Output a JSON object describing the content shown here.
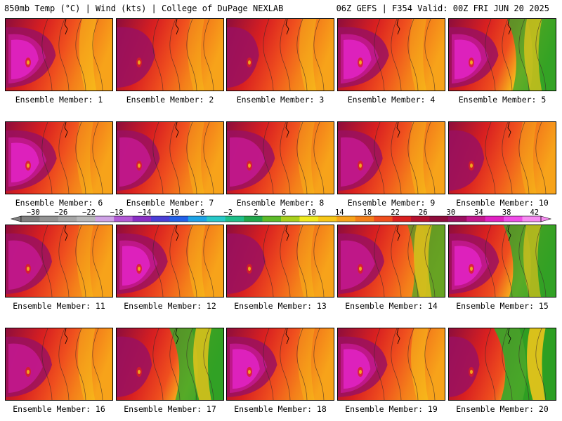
{
  "header": {
    "left": "850mb Temp (°C) | Wind (kts) | College of DuPage NEXLAB",
    "right": "06Z GEFS | F354 Valid: 00Z FRI JUN 20 2025"
  },
  "members": [
    {
      "label": "Ensemble Member: 1",
      "hot": 0.92,
      "cool": 0.18,
      "green": 0
    },
    {
      "label": "Ensemble Member: 2",
      "hot": 0.55,
      "cool": 0.0,
      "green": 0
    },
    {
      "label": "Ensemble Member: 3",
      "hot": 0.35,
      "cool": 0.1,
      "green": 0
    },
    {
      "label": "Ensemble Member: 4",
      "hot": 0.95,
      "cool": 0.05,
      "green": 0
    },
    {
      "label": "Ensemble Member: 5",
      "hot": 0.9,
      "cool": 0.3,
      "green": 0.6
    },
    {
      "label": "Ensemble Member: 6",
      "hot": 0.95,
      "cool": 0.0,
      "green": 0
    },
    {
      "label": "Ensemble Member: 7",
      "hot": 0.7,
      "cool": 0.0,
      "green": 0
    },
    {
      "label": "Ensemble Member: 8",
      "hot": 0.85,
      "cool": 0.0,
      "green": 0
    },
    {
      "label": "Ensemble Member: 9",
      "hot": 0.75,
      "cool": 0.05,
      "green": 0
    },
    {
      "label": "Ensemble Member: 10",
      "hot": 0.45,
      "cool": 0.0,
      "green": 0
    },
    {
      "label": "Ensemble Member: 11",
      "hot": 0.8,
      "cool": 0.0,
      "green": 0
    },
    {
      "label": "Ensemble Member: 12",
      "hot": 0.95,
      "cool": 0.05,
      "green": 0
    },
    {
      "label": "Ensemble Member: 13",
      "hot": 0.55,
      "cool": 0.0,
      "green": 0
    },
    {
      "label": "Ensemble Member: 14",
      "hot": 0.8,
      "cool": 0.35,
      "green": 0.3
    },
    {
      "label": "Ensemble Member: 15",
      "hot": 0.92,
      "cool": 0.25,
      "green": 0.7
    },
    {
      "label": "Ensemble Member: 16",
      "hot": 0.8,
      "cool": 0.1,
      "green": 0
    },
    {
      "label": "Ensemble Member: 17",
      "hot": 0.45,
      "cool": 0.4,
      "green": 0.75
    },
    {
      "label": "Ensemble Member: 18",
      "hot": 0.92,
      "cool": 0.0,
      "green": 0
    },
    {
      "label": "Ensemble Member: 19",
      "hot": 0.9,
      "cool": 0.15,
      "green": 0
    },
    {
      "label": "Ensemble Member: 20",
      "hot": 0.3,
      "cool": 0.5,
      "green": 0.95
    }
  ],
  "colorbar": {
    "ticks": [
      "−30",
      "−26",
      "−22",
      "−18",
      "−14",
      "−10",
      "−6",
      "−2",
      "2",
      "6",
      "10",
      "14",
      "18",
      "22",
      "26",
      "30",
      "34",
      "38",
      "42"
    ],
    "colors": [
      "#7f7f7f",
      "#939393",
      "#a6a6a6",
      "#b9b9b9",
      "#cfa3e6",
      "#b35ad6",
      "#8a2fc4",
      "#4b3fd6",
      "#2361e8",
      "#1ea3e6",
      "#29c8c8",
      "#1fbf8a",
      "#21a64b",
      "#5dbb2a",
      "#a8d01e",
      "#f0ea22",
      "#f7c71a",
      "#f7a31a",
      "#f47f1a",
      "#ef4f1e",
      "#d92020",
      "#b41230",
      "#8e0d3c",
      "#9a1060",
      "#c2188e",
      "#e022c2",
      "#f04ee8",
      "#f78cf2"
    ]
  }
}
